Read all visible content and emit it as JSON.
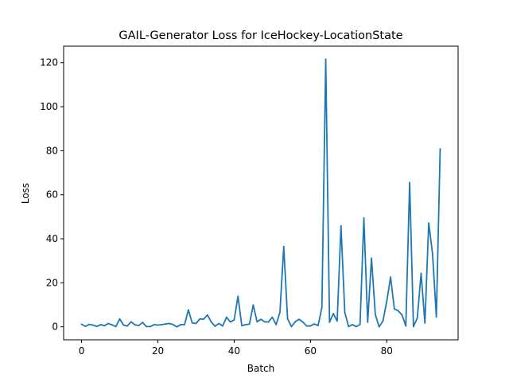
{
  "chart_data": {
    "type": "line",
    "title": "GAIL-Generator Loss for IceHockey-LocationState",
    "xlabel": "Batch",
    "ylabel": "Loss",
    "xlim": [
      -4.7,
      98.7
    ],
    "ylim": [
      -5.9,
      127.5
    ],
    "xticks": [
      0,
      20,
      40,
      60,
      80
    ],
    "yticks": [
      0,
      20,
      40,
      60,
      80,
      100,
      120
    ],
    "grid": false,
    "legend": "none",
    "series": [
      {
        "color": "#1f77b4",
        "x": [
          0,
          1,
          2,
          3,
          4,
          5,
          6,
          7,
          8,
          9,
          10,
          11,
          12,
          13,
          14,
          15,
          16,
          17,
          18,
          19,
          20,
          21,
          22,
          23,
          24,
          25,
          26,
          27,
          28,
          29,
          30,
          31,
          32,
          33,
          34,
          35,
          36,
          37,
          38,
          39,
          40,
          41,
          42,
          43,
          44,
          45,
          46,
          47,
          48,
          49,
          50,
          51,
          52,
          53,
          54,
          55,
          56,
          57,
          58,
          59,
          60,
          61,
          62,
          63,
          64,
          65,
          66,
          67,
          68,
          69,
          70,
          71,
          72,
          73,
          74,
          75,
          76,
          77,
          78,
          79,
          80,
          81,
          82,
          83,
          84,
          85,
          86,
          87,
          88,
          89,
          90,
          91,
          92,
          93,
          94
        ],
        "values": [
          1.2,
          0.2,
          1.1,
          0.8,
          0.2,
          1.0,
          0.5,
          1.5,
          0.9,
          0.1,
          3.6,
          0.8,
          0.4,
          2.3,
          0.9,
          0.6,
          2.0,
          0.1,
          0.1,
          1.0,
          0.8,
          1.0,
          1.3,
          1.5,
          1.0,
          0.0,
          1.0,
          1.0,
          7.7,
          1.8,
          1.5,
          3.6,
          3.5,
          5.4,
          2.2,
          0.3,
          1.5,
          0.4,
          4.4,
          2.2,
          3.1,
          13.9,
          0.5,
          1.0,
          1.2,
          9.9,
          2.3,
          3.4,
          2.3,
          2.2,
          4.4,
          1.0,
          6.6,
          36.5,
          3.7,
          0.1,
          2.3,
          3.4,
          2.2,
          0.4,
          0.4,
          1.3,
          0.6,
          8.8,
          121.6,
          2.1,
          6.0,
          2.6,
          45.9,
          6.6,
          0.1,
          1.0,
          0.1,
          1.1,
          49.4,
          2.1,
          31.2,
          5.6,
          0.0,
          2.7,
          11.6,
          22.6,
          8.1,
          7.3,
          5.4,
          0.4,
          65.6,
          0.1,
          4.0,
          24.3,
          1.7,
          47.2,
          33.2,
          4.5,
          80.8
        ]
      }
    ]
  }
}
